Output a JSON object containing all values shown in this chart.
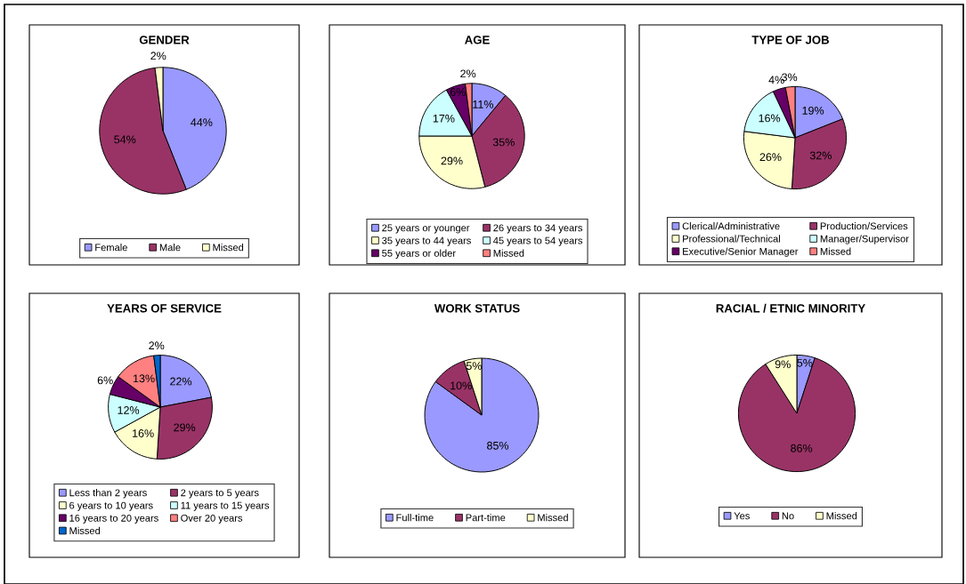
{
  "chart_data": [
    {
      "type": "pie",
      "title": "GENDER",
      "legend": "bottom",
      "categories": [
        "Female",
        "Male",
        "Missed"
      ],
      "values": [
        44,
        54,
        2
      ],
      "value_labels": [
        "44%",
        "54%",
        "2%"
      ],
      "colors": [
        "#9999ff",
        "#993366",
        "#ffffcc"
      ]
    },
    {
      "type": "pie",
      "title": "AGE",
      "legend": "bottom",
      "categories": [
        "25 years or younger",
        "26 years to 34 years",
        "35 years to 44 years",
        "45 years to 54 years",
        "55 years or older",
        "Missed"
      ],
      "values": [
        11,
        35,
        29,
        17,
        6,
        2
      ],
      "value_labels": [
        "11%",
        "35%",
        "29%",
        "17%",
        "6%",
        "2%"
      ],
      "colors": [
        "#9999ff",
        "#993366",
        "#ffffcc",
        "#ccffff",
        "#660066",
        "#ff8080"
      ]
    },
    {
      "type": "pie",
      "title": "TYPE OF JOB",
      "legend": "bottom",
      "categories": [
        "Clerical/Administrative",
        "Production/Services",
        "Professional/Technical",
        "Manager/Supervisor",
        "Executive/Senior Manager",
        "Missed"
      ],
      "values": [
        19,
        32,
        26,
        16,
        4,
        3
      ],
      "value_labels": [
        "19%",
        "32%",
        "26%",
        "16%",
        "4%",
        "3%"
      ],
      "colors": [
        "#9999ff",
        "#993366",
        "#ffffcc",
        "#ccffff",
        "#660066",
        "#ff8080"
      ]
    },
    {
      "type": "pie",
      "title": "YEARS OF SERVICE",
      "legend": "bottom",
      "categories": [
        "Less than 2 years",
        "2 years to 5 years",
        "6 years to 10 years",
        "11 years to 15 years",
        "16 years to 20 years",
        "Over 20 years",
        "Missed"
      ],
      "values": [
        22,
        29,
        16,
        12,
        6,
        13,
        2
      ],
      "value_labels": [
        "22%",
        "29%",
        "16%",
        "12%",
        "6%",
        "13%",
        "2%"
      ],
      "colors": [
        "#9999ff",
        "#993366",
        "#ffffcc",
        "#ccffff",
        "#660066",
        "#ff8080",
        "#0066cc"
      ]
    },
    {
      "type": "pie",
      "title": "WORK STATUS",
      "legend": "bottom",
      "categories": [
        "Full-time",
        "Part-time",
        "Missed"
      ],
      "values": [
        85,
        10,
        5
      ],
      "value_labels": [
        "85%",
        "10%",
        "5%"
      ],
      "colors": [
        "#9999ff",
        "#993366",
        "#ffffcc"
      ]
    },
    {
      "type": "pie",
      "title": "RACIAL / ETNIC MINORITY",
      "legend": "bottom",
      "categories": [
        "Yes",
        "No",
        "Missed"
      ],
      "values": [
        5,
        86,
        9
      ],
      "value_labels": [
        "5%",
        "86%",
        "9%"
      ],
      "colors": [
        "#9999ff",
        "#993366",
        "#ffffcc"
      ]
    }
  ]
}
